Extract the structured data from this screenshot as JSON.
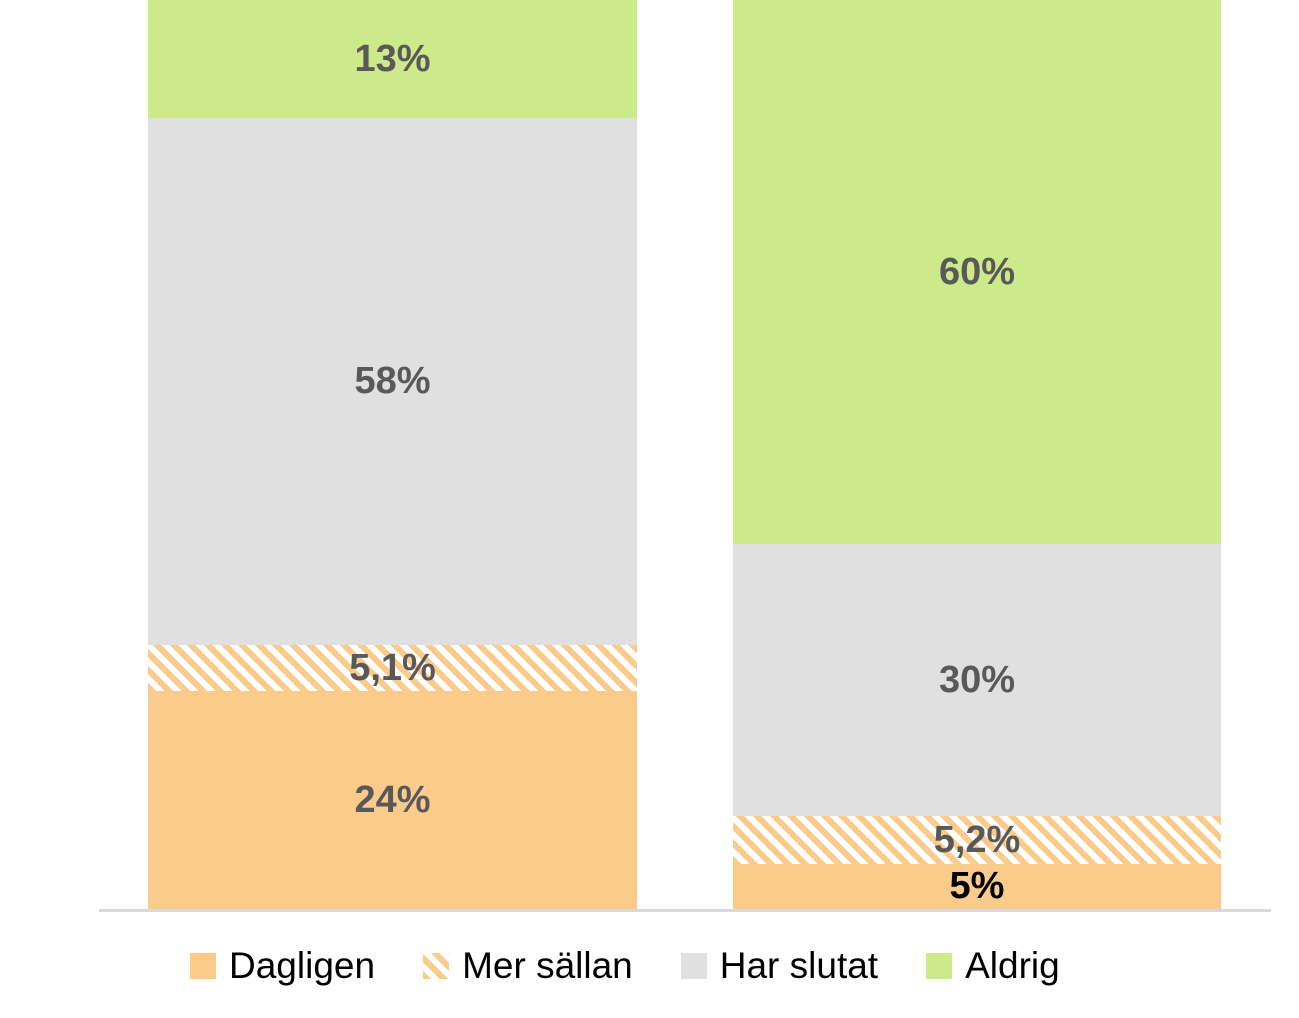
{
  "chart_data": {
    "type": "bar",
    "variant": "stacked-column",
    "orientation": "vertical",
    "categories": [
      "",
      ""
    ],
    "series": [
      {
        "name": "Dagligen",
        "pattern": "solid",
        "values": [
          24,
          5
        ],
        "labels": [
          "24%",
          "5%"
        ]
      },
      {
        "name": "Mer sällan",
        "pattern": "diagonal-hatch-on-white",
        "values": [
          5.1,
          5.2
        ],
        "labels": [
          "5,1%",
          "5,2%"
        ]
      },
      {
        "name": "Har slutat",
        "pattern": "solid",
        "values": [
          58,
          30
        ],
        "labels": [
          "58%",
          "30%"
        ]
      },
      {
        "name": "Aldrig",
        "pattern": "solid",
        "values": [
          13,
          60
        ],
        "labels": [
          "13%",
          "60%"
        ]
      }
    ],
    "stack_order_bottom_to_top": [
      "Dagligen",
      "Mer sällan",
      "Har slutat",
      "Aldrig"
    ],
    "ylim": [
      0,
      100
    ],
    "gridlines": false,
    "x_axis_labels_visible": false,
    "y_axis_labels_visible": false,
    "legend_position": "bottom"
  },
  "legend": {
    "items": [
      {
        "label": "Dagligen",
        "swatch": "orange-solid"
      },
      {
        "label": "Mer sällan",
        "swatch": "orange-diagonal-hatch"
      },
      {
        "label": "Har slutat",
        "swatch": "gray-solid"
      },
      {
        "label": "Aldrig",
        "swatch": "green-solid"
      }
    ]
  },
  "colors": {
    "dagligen": "#FBCB8B",
    "mer_sallan_stripe": "#FBCB8B",
    "pattern_background": "#FFFFFF",
    "har_slutat": "#E0E0E0",
    "aldrig": "#CDEA8B",
    "data_label": "#595959",
    "data_label_special": "#000000",
    "axis_line": "#D9D9D9",
    "legend_text": "#000000",
    "background": "#FFFFFF"
  }
}
